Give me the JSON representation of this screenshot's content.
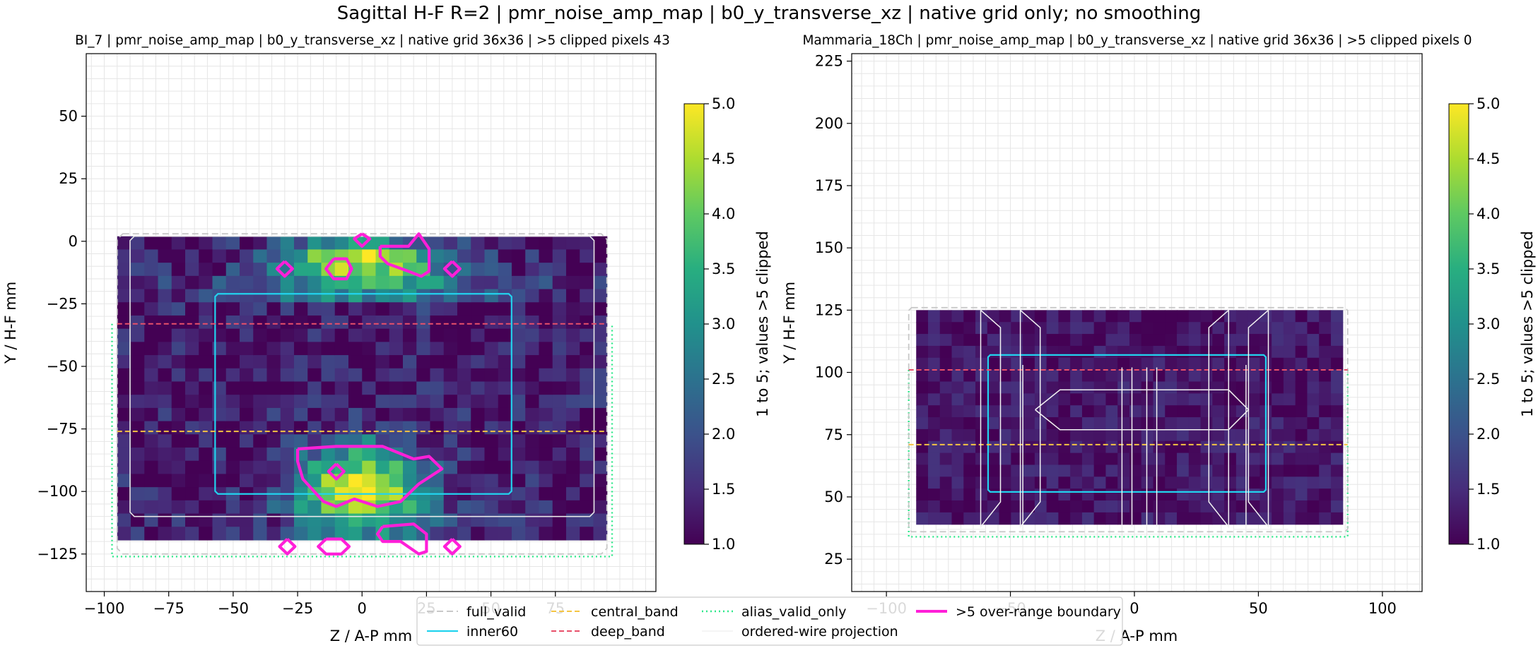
{
  "figure": {
    "suptitle": "Sagittal H-F R=2 | pmr_noise_amp_map | b0_y_transverse_xz | native grid only; no smoothing"
  },
  "colors": {
    "full_valid": "#c8c8c8",
    "inner60": "#22d3ee",
    "central_band": "#f5c542",
    "deep_band": "#e8506a",
    "alias_valid_only": "#2ee88a",
    "wire": "#f2f2f2",
    "overrange": "#ff1fd8"
  },
  "legend": {
    "items": [
      {
        "label": "full_valid",
        "style": "full_valid"
      },
      {
        "label": "inner60",
        "style": "inner60"
      },
      {
        "label": "central_band",
        "style": "central_band"
      },
      {
        "label": "deep_band",
        "style": "deep_band"
      },
      {
        "label": "alias_valid_only",
        "style": "alias_valid_only"
      },
      {
        "label": "ordered-wire projection",
        "style": "wire"
      },
      {
        "label": ">5 over-range boundary",
        "style": "overrange"
      }
    ]
  },
  "chart_data": [
    {
      "type": "heatmap",
      "title": "BI_7 | pmr_noise_amp_map | b0_y_transverse_xz | native grid 36x36 | >5 clipped pixels 43",
      "xlabel": "Z / A-P mm",
      "ylabel": "Y / H-F mm",
      "xlim": [
        -107,
        114
      ],
      "ylim": [
        -140,
        75
      ],
      "xticks": [
        -100,
        -75,
        -50,
        -25,
        0,
        25,
        50,
        75
      ],
      "yticks": [
        -125,
        -100,
        -75,
        -50,
        -25,
        0,
        25,
        50
      ],
      "xtick_labels": [
        "−100",
        "−75",
        "−50",
        "−25",
        "0",
        "25",
        "50",
        "75"
      ],
      "ytick_labels": [
        "−125",
        "−100",
        "−75",
        "−50",
        "−25",
        "0",
        "25",
        "50"
      ],
      "grid": true,
      "data_extent": {
        "x": [
          -95,
          95
        ],
        "y": [
          -123,
          2
        ]
      },
      "colorbar": {
        "label": "1 to 5; values >5 clipped",
        "range": [
          1,
          5
        ],
        "ticks": [
          1.0,
          1.5,
          2.0,
          2.5,
          3.0,
          3.5,
          4.0,
          4.5,
          5.0
        ],
        "tick_labels": [
          "1.0",
          "1.5",
          "2.0",
          "2.5",
          "3.0",
          "3.5",
          "4.0",
          "4.5",
          "5.0"
        ]
      },
      "regions": {
        "full_valid": {
          "x": [
            -95,
            95
          ],
          "y": [
            -125,
            3
          ],
          "corner": 8
        },
        "inner_outline": {
          "x": [
            -90,
            90
          ],
          "y": [
            -110,
            2
          ],
          "corner": 6
        },
        "inner60": {
          "x": [
            -57,
            58
          ],
          "y": [
            -101,
            -21
          ],
          "corner": 4
        },
        "deep_band": {
          "y": -33,
          "x": [
            -95,
            95
          ]
        },
        "central_band": {
          "y": -76,
          "x": [
            -95,
            95
          ]
        },
        "alias_valid_only": {
          "x": [
            -97,
            97
          ],
          "y": [
            -126,
            -33
          ]
        }
      },
      "overrange_boundaries": [
        [
          [
            0,
            3
          ],
          [
            3,
            1
          ],
          [
            0,
            -2
          ],
          [
            -3,
            1
          ],
          [
            0,
            3
          ]
        ],
        [
          [
            7,
            -2
          ],
          [
            18,
            -2
          ],
          [
            22,
            3
          ],
          [
            26,
            -3
          ],
          [
            26,
            -12
          ],
          [
            23,
            -14
          ],
          [
            18,
            -12
          ],
          [
            10,
            -9
          ],
          [
            7,
            -6
          ],
          [
            7,
            -2
          ]
        ],
        [
          [
            -11,
            -7
          ],
          [
            -6,
            -7
          ],
          [
            -4,
            -11
          ],
          [
            -6,
            -15
          ],
          [
            -11,
            -15
          ],
          [
            -14,
            -11
          ],
          [
            -11,
            -7
          ]
        ],
        [
          [
            -30,
            -8
          ],
          [
            -27,
            -11
          ],
          [
            -30,
            -14
          ],
          [
            -33,
            -11
          ],
          [
            -30,
            -8
          ]
        ],
        [
          [
            35,
            -8
          ],
          [
            38,
            -11
          ],
          [
            35,
            -14
          ],
          [
            32,
            -11
          ],
          [
            35,
            -8
          ]
        ],
        [
          [
            -25,
            -83
          ],
          [
            -10,
            -82
          ],
          [
            8,
            -82
          ],
          [
            20,
            -87
          ],
          [
            26,
            -86
          ],
          [
            31,
            -91
          ],
          [
            22,
            -97
          ],
          [
            15,
            -104
          ],
          [
            6,
            -106
          ],
          [
            -3,
            -103
          ],
          [
            -10,
            -106
          ],
          [
            -15,
            -104
          ],
          [
            -23,
            -95
          ],
          [
            -25,
            -88
          ],
          [
            -25,
            -83
          ]
        ],
        [
          [
            -10,
            -89
          ],
          [
            -7,
            -92
          ],
          [
            -10,
            -95
          ],
          [
            -13,
            -92
          ],
          [
            -10,
            -89
          ]
        ],
        [
          [
            8,
            -114
          ],
          [
            20,
            -113
          ],
          [
            25,
            -117
          ],
          [
            25,
            -124
          ],
          [
            22,
            -125
          ],
          [
            15,
            -120
          ],
          [
            8,
            -120
          ],
          [
            6,
            -117
          ],
          [
            8,
            -114
          ]
        ],
        [
          [
            -14,
            -119
          ],
          [
            -8,
            -119
          ],
          [
            -5,
            -122
          ],
          [
            -8,
            -125
          ],
          [
            -14,
            -125
          ],
          [
            -17,
            -122
          ],
          [
            -14,
            -119
          ]
        ],
        [
          [
            -29,
            -119
          ],
          [
            -26,
            -122
          ],
          [
            -29,
            -125
          ],
          [
            -32,
            -122
          ],
          [
            -29,
            -119
          ]
        ],
        [
          [
            35,
            -119
          ],
          [
            38,
            -122
          ],
          [
            35,
            -125
          ],
          [
            32,
            -122
          ],
          [
            35,
            -119
          ]
        ]
      ],
      "wire_projection": []
    },
    {
      "type": "heatmap",
      "title": "Mammaria_18Ch | pmr_noise_amp_map | b0_y_transverse_xz | native grid 36x36 | >5 clipped pixels 0",
      "xlabel": "Z / A-P mm",
      "ylabel": "Y / H-F mm",
      "xlim": [
        -114,
        116
      ],
      "ylim": [
        12,
        228
      ],
      "xticks": [
        -100,
        -50,
        0,
        50,
        100
      ],
      "yticks": [
        25,
        50,
        75,
        100,
        125,
        150,
        175,
        200,
        225
      ],
      "xtick_labels": [
        "−100",
        "−50",
        "0",
        "50",
        "100"
      ],
      "ytick_labels": [
        "25",
        "50",
        "75",
        "100",
        "125",
        "150",
        "175",
        "200",
        "225"
      ],
      "grid": true,
      "data_extent": {
        "x": [
          -88,
          84
        ],
        "y": [
          36,
          125
        ]
      },
      "colorbar": {
        "label": "1 to 5; values >5 clipped",
        "range": [
          1,
          5
        ],
        "ticks": [
          1.0,
          1.5,
          2.0,
          2.5,
          3.0,
          3.5,
          4.0,
          4.5,
          5.0
        ],
        "tick_labels": [
          "1.0",
          "1.5",
          "2.0",
          "2.5",
          "3.0",
          "3.5",
          "4.0",
          "4.5",
          "5.0"
        ]
      },
      "regions": {
        "full_valid": {
          "x": [
            -91,
            86
          ],
          "y": [
            36,
            126
          ],
          "corner": 4
        },
        "inner60": {
          "x": [
            -59,
            53
          ],
          "y": [
            52,
            107
          ],
          "corner": 3
        },
        "deep_band": {
          "y": 101,
          "x": [
            -91,
            86
          ]
        },
        "central_band": {
          "y": 71,
          "x": [
            -91,
            86
          ]
        },
        "alias_valid_only": {
          "x": [
            -91,
            86
          ],
          "y": [
            34,
            101
          ]
        }
      },
      "overrange_boundaries": [],
      "wire_projection": [
        [
          [
            -62,
            125
          ],
          [
            -54,
            118
          ],
          [
            -54,
            48
          ],
          [
            -62,
            38
          ],
          [
            -62,
            125
          ]
        ],
        [
          [
            -46,
            125
          ],
          [
            -38,
            118
          ],
          [
            -38,
            48
          ],
          [
            -46,
            38
          ],
          [
            -46,
            125
          ]
        ],
        [
          [
            -5,
            102
          ],
          [
            -5,
            38
          ]
        ],
        [
          [
            -1,
            102
          ],
          [
            -1,
            38
          ]
        ],
        [
          [
            5,
            102
          ],
          [
            5,
            38
          ]
        ],
        [
          [
            9,
            102
          ],
          [
            9,
            38
          ]
        ],
        [
          [
            38,
            125
          ],
          [
            30,
            118
          ],
          [
            30,
            48
          ],
          [
            38,
            38
          ],
          [
            38,
            125
          ]
        ],
        [
          [
            54,
            125
          ],
          [
            46,
            118
          ],
          [
            46,
            48
          ],
          [
            54,
            38
          ],
          [
            54,
            125
          ]
        ],
        [
          [
            -40,
            85
          ],
          [
            -30,
            93
          ],
          [
            38,
            93
          ],
          [
            46,
            85
          ],
          [
            38,
            77
          ],
          [
            -30,
            77
          ],
          [
            -40,
            85
          ]
        ],
        [
          [
            -45,
            103
          ],
          [
            -45,
            38
          ]
        ],
        [
          [
            45,
            103
          ],
          [
            45,
            38
          ]
        ],
        [
          [
            -80,
            37
          ],
          [
            -60,
            37
          ]
        ],
        [
          [
            40,
            37
          ],
          [
            62,
            37
          ]
        ]
      ]
    }
  ]
}
